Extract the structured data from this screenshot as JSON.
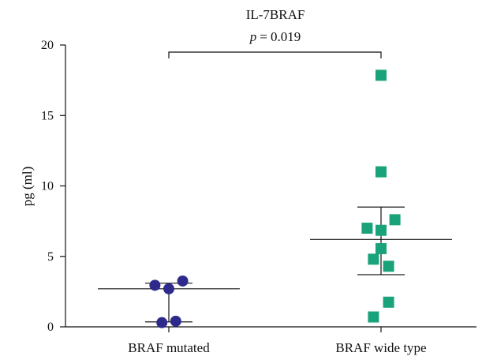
{
  "chart_data": {
    "type": "scatter",
    "title": "IL-7BRAF",
    "stat_symbol": "p",
    "stat_value": "= 0.019",
    "ylabel": "pg (ml)",
    "xlabel": "",
    "ylim": [
      0,
      20
    ],
    "yticks": [
      0,
      5,
      10,
      15,
      20
    ],
    "categories": [
      "BRAF mutated",
      "BRAF wide type"
    ],
    "grid": false,
    "series": [
      {
        "category": "BRAF mutated",
        "marker": "circle",
        "color": "#2e2a8c",
        "values": [
          2.95,
          2.7,
          3.25,
          0.3,
          0.4
        ],
        "jitter": [
          -0.22,
          0.0,
          0.22,
          -0.11,
          0.11
        ],
        "median": 2.7,
        "upper": 3.1,
        "lower": 0.35
      },
      {
        "category": "BRAF wide type",
        "marker": "square",
        "color": "#1aa37a",
        "values": [
          17.85,
          11.0,
          7.6,
          7.0,
          6.85,
          5.55,
          4.8,
          4.3,
          1.75,
          0.7
        ],
        "jitter": [
          0.0,
          0.0,
          0.22,
          -0.22,
          0.0,
          0.0,
          -0.12,
          0.12,
          0.12,
          -0.12
        ],
        "median": 6.2,
        "upper": 8.5,
        "lower": 3.7
      }
    ]
  }
}
